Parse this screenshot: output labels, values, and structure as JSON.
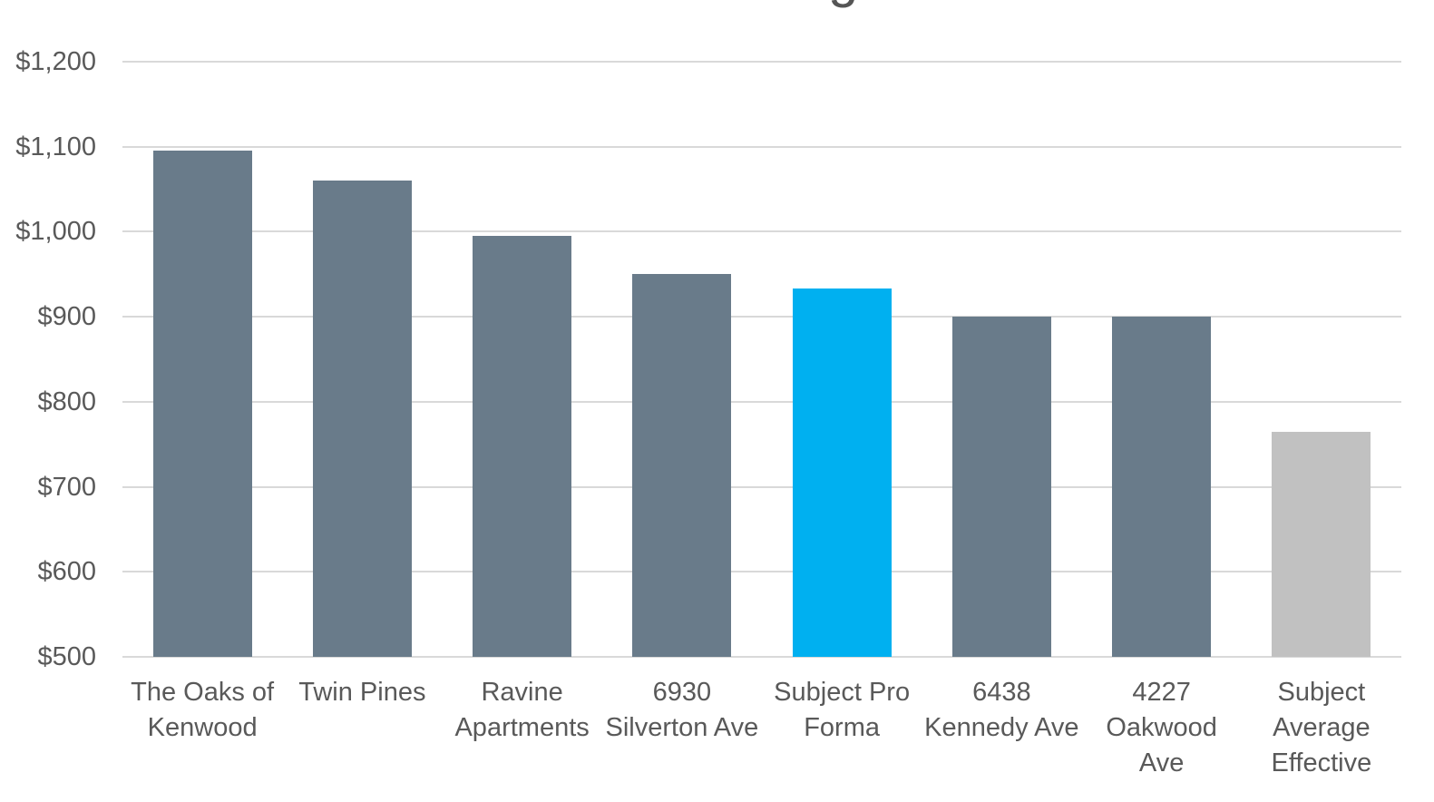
{
  "title_fragment": "g",
  "colors": {
    "bar_default": "#697B8A",
    "bar_highlight": "#00B0F0",
    "bar_muted": "#C1C1C1",
    "gridline": "#D9D9D9",
    "axis_text": "#595959",
    "background": "#FFFFFF"
  },
  "chart_data": {
    "type": "bar",
    "title": "",
    "xlabel": "",
    "ylabel": "",
    "grid": true,
    "legend": "none",
    "ylim": [
      500,
      1200
    ],
    "ytick_step": 100,
    "yticks": [
      {
        "value": 500,
        "label": "$500"
      },
      {
        "value": 600,
        "label": "$600"
      },
      {
        "value": 700,
        "label": "$700"
      },
      {
        "value": 800,
        "label": "$800"
      },
      {
        "value": 900,
        "label": "$900"
      },
      {
        "value": 1000,
        "label": "$1,000"
      },
      {
        "value": 1100,
        "label": "$1,100"
      },
      {
        "value": 1200,
        "label": "$1,200"
      }
    ],
    "categories": [
      "The Oaks of Kenwood",
      "Twin Pines",
      "Ravine Apartments",
      "6930 Silverton Ave",
      "Subject Pro Forma",
      "6438 Kennedy Ave",
      "4227 Oakwood Ave",
      "Subject Average Effective"
    ],
    "category_lines": [
      [
        "The Oaks of",
        "Kenwood"
      ],
      [
        "Twin Pines"
      ],
      [
        "Ravine",
        "Apartments"
      ],
      [
        "6930",
        "Silverton Ave"
      ],
      [
        "Subject Pro",
        "Forma"
      ],
      [
        "6438",
        "Kennedy Ave"
      ],
      [
        "4227",
        "Oakwood",
        "Ave"
      ],
      [
        "Subject",
        "Average",
        "Effective"
      ]
    ],
    "values": [
      1095,
      1060,
      995,
      950,
      933,
      900,
      900,
      765
    ],
    "bar_colors": [
      "#697B8A",
      "#697B8A",
      "#697B8A",
      "#697B8A",
      "#00B0F0",
      "#697B8A",
      "#697B8A",
      "#C1C1C1"
    ],
    "highlight_index": 4,
    "muted_index": 7
  }
}
